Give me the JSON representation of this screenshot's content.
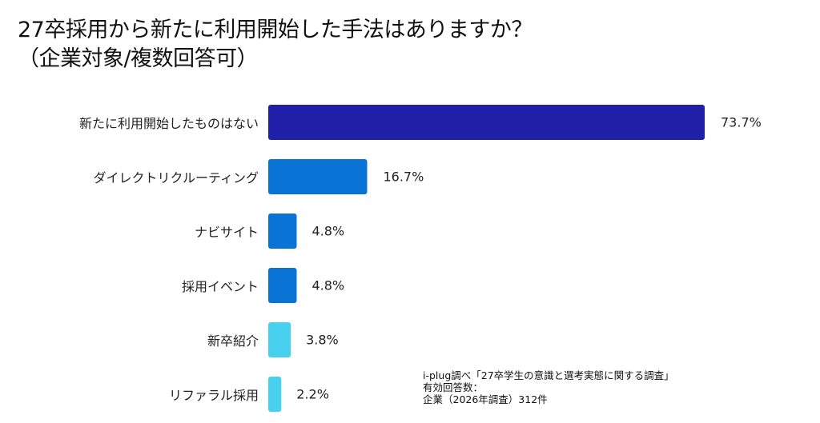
{
  "chart_data": {
    "type": "bar",
    "orientation": "horizontal",
    "title": "27卒採用から新たに利用開始した手法はありますか？",
    "subtitle": "（企業対象/複数回答可）",
    "categories": [
      "新たに利用開始したものはない",
      "ダイレクトリクルーティング",
      "ナビサイト",
      "採用イベント",
      "新卒紹介",
      "リファラル採用"
    ],
    "values": [
      73.7,
      16.7,
      4.8,
      4.8,
      3.8,
      2.2
    ],
    "value_labels": [
      "73.7%",
      "16.7%",
      "4.8%",
      "4.8%",
      "3.8%",
      "2.2%"
    ],
    "colors": [
      "#1f1fa8",
      "#0a74d6",
      "#0a74d6",
      "#0a74d6",
      "#48d0ef",
      "#48d0ef"
    ],
    "unit": "%",
    "xlim": [
      0,
      73.7
    ],
    "grid": false,
    "xlabel": "",
    "ylabel": ""
  },
  "note": {
    "line1": "i-plug調べ「27卒学生の意識と選考実態に関する調査」",
    "line2": "有効回答数：",
    "line3": "企業（2026年調査）312件"
  }
}
